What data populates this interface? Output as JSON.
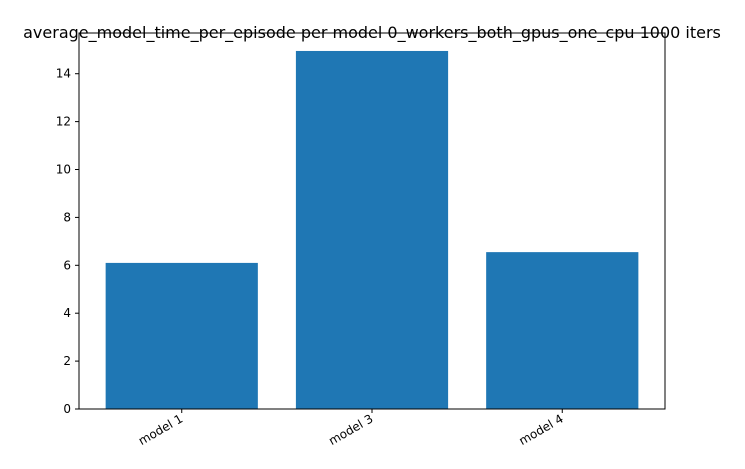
{
  "chart_data": {
    "type": "bar",
    "title": "average_model_time_per_episode per model 0_workers_both_gpus_one_cpu 1000 iters",
    "xlabel": "",
    "ylabel": "",
    "categories": [
      "model 1",
      "model 3",
      "model 4"
    ],
    "values": [
      6.1,
      14.95,
      6.55
    ],
    "ylim": [
      0,
      15.7
    ],
    "yticks": [
      0,
      2,
      4,
      6,
      8,
      10,
      12,
      14
    ],
    "grid": false,
    "legend": "none",
    "bar_color": "#1f77b4"
  }
}
